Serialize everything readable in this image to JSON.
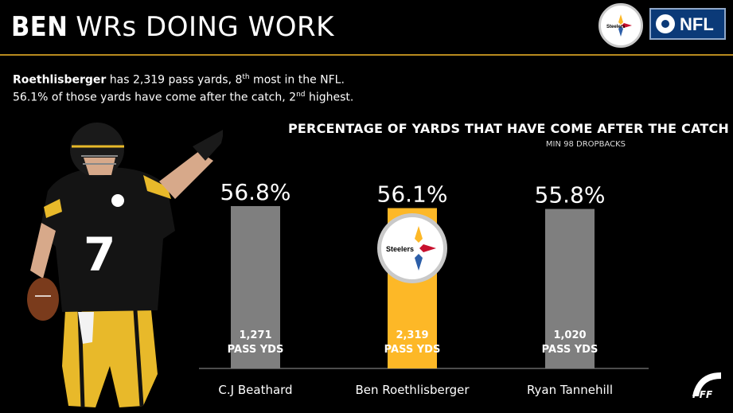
{
  "header": {
    "title_bold": "BEN",
    "title_rest": "WRs DOING WORK",
    "team_logo_text": "Steelers",
    "network_logo_text": "NFL"
  },
  "summary": {
    "line1_name": "Roethlisberger",
    "line1_mid": " has 2,319 pass yards, 8",
    "line1_sup": "th",
    "line1_end": " most in the NFL.",
    "line2_start": "56.1% of those yards have come after the catch, 2",
    "line2_sup": "nd",
    "line2_end": " highest."
  },
  "player": {
    "jersey_number": "7"
  },
  "chart_data": {
    "type": "bar",
    "title": "PERCENTAGE OF YARDS THAT HAVE COME AFTER THE CATCH",
    "subtitle": "MIN 98 DROPBACKS",
    "categories": [
      "C.J Beathard",
      "Ben Roethlisberger",
      "Ryan Tannehill"
    ],
    "values": [
      56.8,
      56.1,
      55.8
    ],
    "value_labels": [
      "56.8%",
      "56.1%",
      "55.8%"
    ],
    "pass_yds": [
      "1,271",
      "2,319",
      "1,020"
    ],
    "pass_yds_label": "PASS YDS",
    "highlight_index": 1,
    "colors": {
      "default": "#7f7f7f",
      "highlight": "#fdb827"
    },
    "bar_logo_text": "Steelers"
  },
  "colors": {
    "accent": "#b88a1e",
    "steelers_gold": "#fdb827",
    "background": "#000000"
  },
  "footer": {
    "brand": "PFF"
  }
}
